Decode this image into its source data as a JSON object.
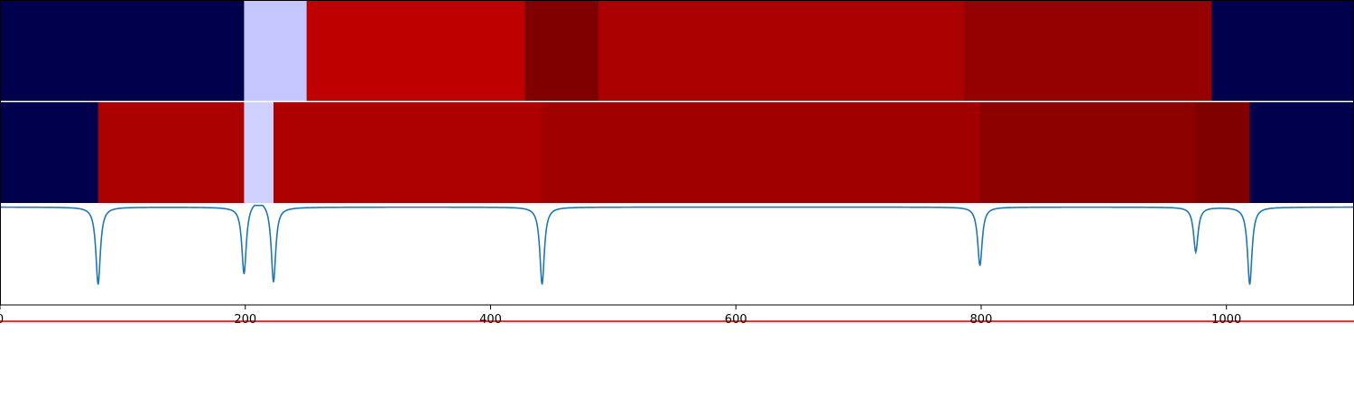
{
  "chart_data": {
    "type": "heatmap",
    "title": "",
    "xlabel": "",
    "ylabel": "",
    "xlim": [
      0,
      1104
    ],
    "x_ticks": [
      "0",
      "200",
      "400",
      "600",
      "800",
      "1000"
    ],
    "x_tick_values": [
      0,
      200,
      400,
      600,
      800,
      1000
    ],
    "colormap": "seismic",
    "segment_rows": [
      {
        "segments": [
          {
            "start": 0,
            "end": 199,
            "color": "#00004c"
          },
          {
            "start": 199,
            "end": 250,
            "color": "#c6c6ff"
          },
          {
            "start": 250,
            "end": 428,
            "color": "#be0000"
          },
          {
            "start": 428,
            "end": 488,
            "color": "#800000"
          },
          {
            "start": 488,
            "end": 786,
            "color": "#ab0000"
          },
          {
            "start": 786,
            "end": 988,
            "color": "#950000"
          },
          {
            "start": 988,
            "end": 1104,
            "color": "#00004c"
          }
        ]
      },
      {
        "segments": [
          {
            "start": 0,
            "end": 80,
            "color": "#00004c"
          },
          {
            "start": 80,
            "end": 199,
            "color": "#ab0000"
          },
          {
            "start": 199,
            "end": 223,
            "color": "#d0d0ff"
          },
          {
            "start": 223,
            "end": 442,
            "color": "#ac0000"
          },
          {
            "start": 442,
            "end": 799,
            "color": "#a10000"
          },
          {
            "start": 799,
            "end": 975,
            "color": "#8c0000"
          },
          {
            "start": 975,
            "end": 1019,
            "color": "#800000"
          },
          {
            "start": 1019,
            "end": 1104,
            "color": "#00004c"
          }
        ]
      }
    ],
    "signal": {
      "color": "#1f77b4",
      "ylim": [
        -1.2,
        0.05
      ],
      "baseline": 0,
      "dips": [
        {
          "center": 80,
          "depth": 0.95,
          "width": 2.2
        },
        {
          "center": 199,
          "depth": 0.85,
          "width": 2.2
        },
        {
          "center": 223,
          "depth": 0.95,
          "width": 2.2
        },
        {
          "center": 442,
          "depth": 0.95,
          "width": 2.2
        },
        {
          "center": 799,
          "depth": 0.72,
          "width": 2.2
        },
        {
          "center": 975,
          "depth": 0.55,
          "width": 2.2
        },
        {
          "center": 1019,
          "depth": 0.95,
          "width": 2.2
        }
      ],
      "hump": {
        "center": 211,
        "height": 0.1,
        "width": 12
      }
    },
    "threshold": {
      "value": -1.4,
      "color": "#ff0000"
    },
    "colors": {
      "axis": "#000000",
      "separator": "#ffffff"
    }
  }
}
